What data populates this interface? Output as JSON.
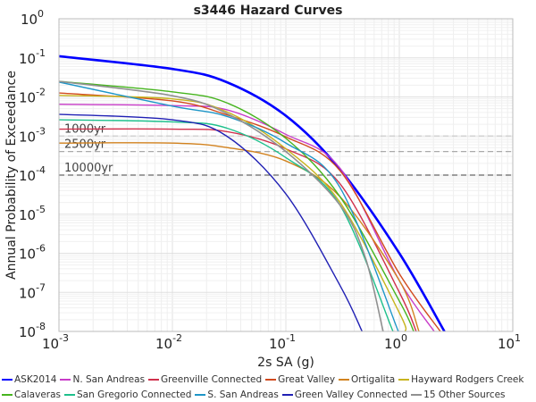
{
  "chart_data": {
    "type": "line",
    "title": "s3446 Hazard Curves",
    "xlabel": "2s SA (g)",
    "ylabel": "Annual Probability of Exceedance",
    "x_scale": "log",
    "y_scale": "log",
    "xlim": [
      0.001,
      10
    ],
    "ylim": [
      1e-08,
      1
    ],
    "x_tick_base": "10",
    "x_tick_exponents": [
      "-3",
      "-2",
      "-1",
      "0",
      "1"
    ],
    "y_tick_base": "10",
    "y_tick_exponents": [
      "0",
      "-1",
      "-2",
      "-3",
      "-4",
      "-5",
      "-6",
      "-7",
      "-8"
    ],
    "grid": true,
    "legend_position": "bottom",
    "reference_lines": [
      {
        "label": "1000yr",
        "y": 0.001,
        "color": "#cccccc"
      },
      {
        "label": "2500yr",
        "y": 0.0004,
        "color": "#aaaaaa"
      },
      {
        "label": "10000yr",
        "y": 0.0001,
        "color": "#666666"
      }
    ],
    "series": [
      {
        "name": "ASK2014",
        "color": "#0000ff",
        "width": 2.6,
        "x": [
          0.001,
          0.01,
          0.03,
          0.1,
          0.3,
          1,
          2.5
        ],
        "y": [
          0.11,
          0.052,
          0.024,
          0.0033,
          0.00014,
          1e-06,
          1e-08
        ]
      },
      {
        "name": "N. San Andreas",
        "color": "#c83cc8",
        "width": 1.4,
        "x": [
          0.001,
          0.01,
          0.03,
          0.1,
          0.3,
          1,
          2.03
        ],
        "y": [
          0.0065,
          0.006,
          0.0047,
          0.0011,
          0.00015,
          2e-07,
          1e-08
        ]
      },
      {
        "name": "Greenville Connected",
        "color": "#d0304c",
        "width": 1.4,
        "x": [
          0.001,
          0.01,
          0.03,
          0.1,
          0.3,
          1,
          1.41
        ],
        "y": [
          0.0015,
          0.0015,
          0.0013,
          0.00047,
          6e-05,
          1e-07,
          1e-08
        ]
      },
      {
        "name": "Great Valley",
        "color": "#d24a1e",
        "width": 1.4,
        "x": [
          0.001,
          0.01,
          0.03,
          0.1,
          0.3,
          1,
          2.3
        ],
        "y": [
          0.0126,
          0.0079,
          0.0035,
          0.00095,
          0.00013,
          3e-07,
          1e-08
        ]
      },
      {
        "name": "Ortigalita",
        "color": "#d2821e",
        "width": 1.4,
        "x": [
          0.001,
          0.01,
          0.03,
          0.1,
          0.3,
          1,
          1.49
        ],
        "y": [
          0.00066,
          0.00066,
          0.00051,
          0.00023,
          2.8e-05,
          2e-07,
          1e-08
        ]
      },
      {
        "name": "Hayward Rodgers Creek",
        "color": "#c8b41e",
        "width": 1.4,
        "x": [
          0.001,
          0.01,
          0.03,
          0.1,
          0.3,
          1,
          1.13
        ],
        "y": [
          0.011,
          0.0089,
          0.0042,
          0.00047,
          2e-05,
          3e-08,
          1e-08
        ]
      },
      {
        "name": "Calaveras",
        "color": "#46b41e",
        "width": 1.4,
        "x": [
          0.001,
          0.01,
          0.03,
          0.1,
          0.3,
          1,
          1.34
        ],
        "y": [
          0.025,
          0.0135,
          0.0071,
          0.00087,
          2.8e-05,
          6e-08,
          1e-08
        ]
      },
      {
        "name": "San Gregorio Connected",
        "color": "#1ec08c",
        "width": 1.4,
        "x": [
          0.001,
          0.01,
          0.03,
          0.1,
          0.3,
          0.88
        ],
        "y": [
          0.0026,
          0.0023,
          0.0016,
          0.00028,
          1.7e-05,
          1e-08
        ]
      },
      {
        "name": "S. San Andreas",
        "color": "#1e96c8",
        "width": 1.4,
        "x": [
          0.001,
          0.01,
          0.03,
          0.1,
          0.3,
          0.98
        ],
        "y": [
          0.024,
          0.0058,
          0.0032,
          0.00066,
          4.8e-05,
          1e-08
        ]
      },
      {
        "name": "Green Valley Connected",
        "color": "#2020b4",
        "width": 1.4,
        "x": [
          0.001,
          0.01,
          0.03,
          0.1,
          0.3,
          0.47
        ],
        "y": [
          0.0036,
          0.0026,
          0.001,
          3.3e-05,
          1.5e-07,
          1e-08
        ]
      },
      {
        "name": "15 Other Sources",
        "color": "#909090",
        "width": 1.6,
        "x": [
          0.001,
          0.01,
          0.03,
          0.1,
          0.3,
          0.5,
          0.72
        ],
        "y": [
          0.025,
          0.0107,
          0.0038,
          0.0004,
          1.7e-05,
          8e-07,
          1e-08
        ]
      }
    ]
  }
}
